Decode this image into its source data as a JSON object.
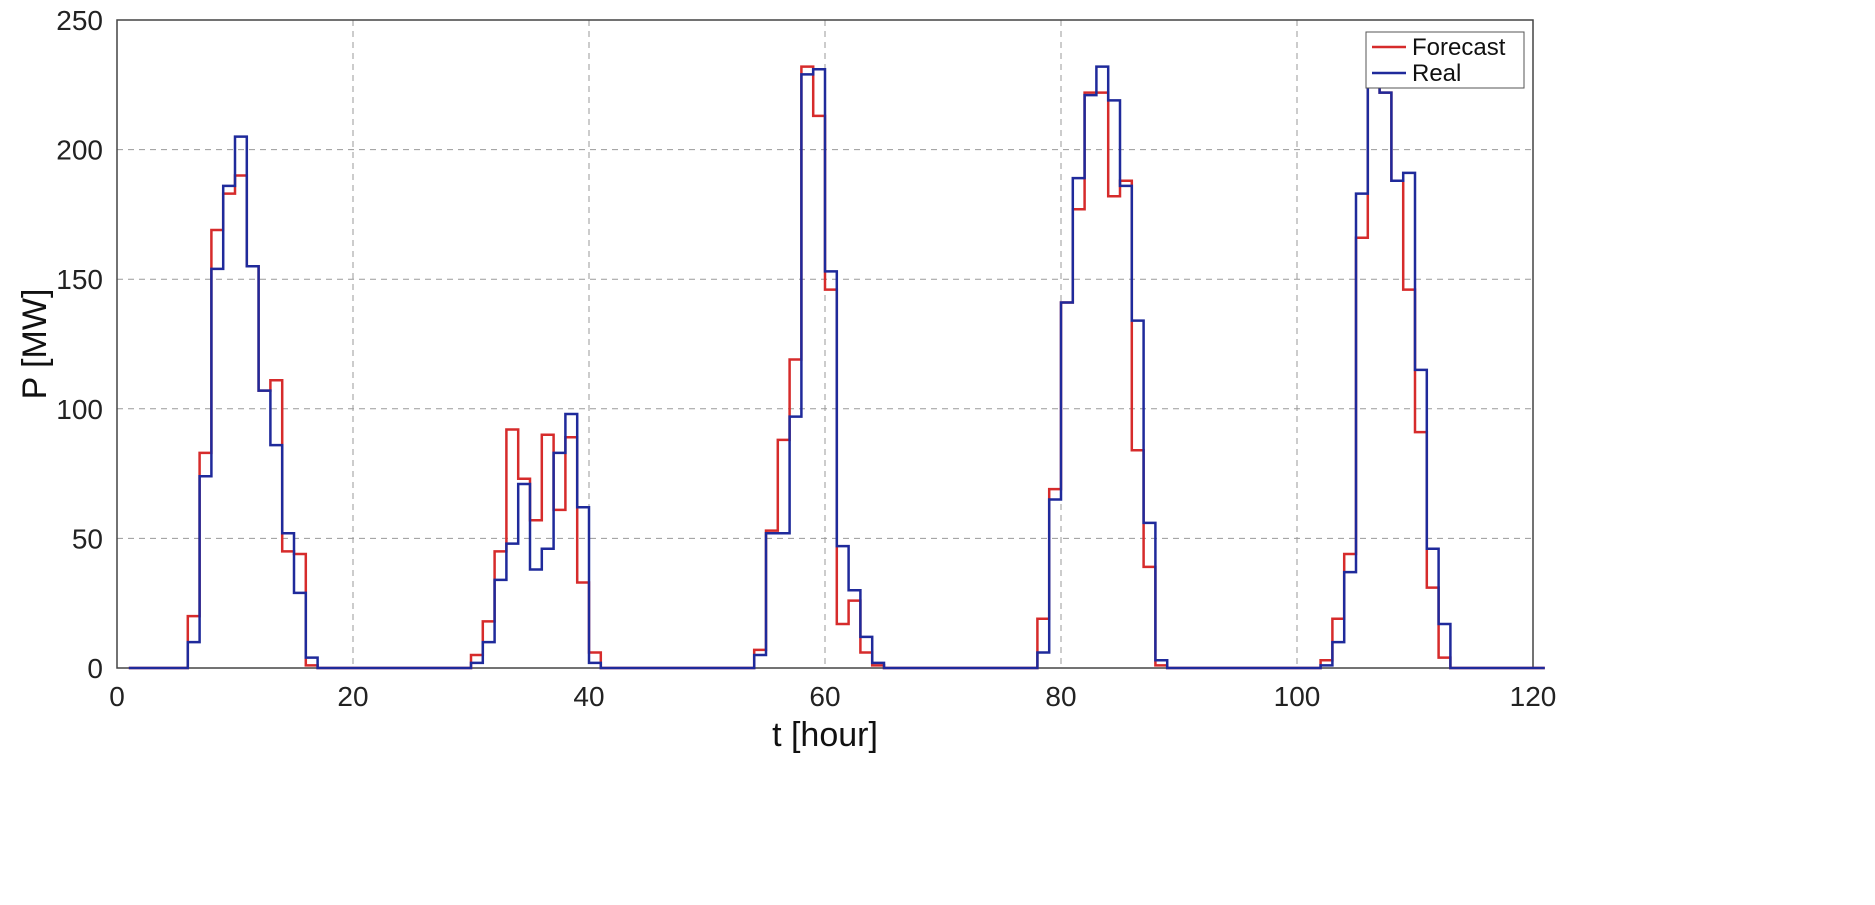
{
  "chart_data": {
    "type": "line",
    "step": true,
    "xlabel": "t [hour]",
    "ylabel": "P [MW]",
    "xlim": [
      0,
      120
    ],
    "ylim": [
      0,
      250
    ],
    "xticks": [
      0,
      20,
      40,
      60,
      80,
      100,
      120
    ],
    "yticks": [
      0,
      50,
      100,
      150,
      200,
      250
    ],
    "x_tick_labels": [
      "0",
      "20",
      "40",
      "60",
      "80",
      "100",
      "120"
    ],
    "y_tick_labels": [
      "0",
      "50",
      "100",
      "150",
      "200",
      "250"
    ],
    "grid": true,
    "legend_position": "top-right",
    "x": [
      1,
      2,
      3,
      4,
      5,
      6,
      7,
      8,
      9,
      10,
      11,
      12,
      13,
      14,
      15,
      16,
      17,
      18,
      19,
      20,
      21,
      22,
      23,
      24,
      25,
      26,
      27,
      28,
      29,
      30,
      31,
      32,
      33,
      34,
      35,
      36,
      37,
      38,
      39,
      40,
      41,
      42,
      43,
      44,
      45,
      46,
      47,
      48,
      49,
      50,
      51,
      52,
      53,
      54,
      55,
      56,
      57,
      58,
      59,
      60,
      61,
      62,
      63,
      64,
      65,
      66,
      67,
      68,
      69,
      70,
      71,
      72,
      73,
      74,
      75,
      76,
      77,
      78,
      79,
      80,
      81,
      82,
      83,
      84,
      85,
      86,
      87,
      88,
      89,
      90,
      91,
      92,
      93,
      94,
      95,
      96,
      97,
      98,
      99,
      100,
      101,
      102,
      103,
      104,
      105,
      106,
      107,
      108,
      109,
      110,
      111,
      112,
      113,
      114,
      115,
      116,
      117,
      118,
      119,
      120
    ],
    "series": [
      {
        "name": "Forecast",
        "color": "#d62b2b",
        "values": [
          0,
          0,
          0,
          0,
          0,
          20,
          83,
          169,
          183,
          190,
          155,
          107,
          111,
          45,
          44,
          1,
          0,
          0,
          0,
          0,
          0,
          0,
          0,
          0,
          0,
          0,
          0,
          0,
          0,
          5,
          18,
          45,
          92,
          73,
          57,
          90,
          61,
          89,
          33,
          6,
          0,
          0,
          0,
          0,
          0,
          0,
          0,
          0,
          0,
          0,
          0,
          0,
          0,
          7,
          53,
          88,
          119,
          232,
          213,
          146,
          17,
          26,
          6,
          1,
          0,
          0,
          0,
          0,
          0,
          0,
          0,
          0,
          0,
          0,
          0,
          0,
          0,
          19,
          69,
          141,
          177,
          222,
          222,
          182,
          188,
          84,
          39,
          1,
          0,
          0,
          0,
          0,
          0,
          0,
          0,
          0,
          0,
          0,
          0,
          0,
          0,
          3,
          19,
          44,
          166,
          232,
          222,
          188,
          146,
          91,
          31,
          4,
          0,
          0,
          0,
          0,
          0,
          0,
          0,
          0
        ]
      },
      {
        "name": "Real",
        "color": "#1f2a9b",
        "values": [
          0,
          0,
          0,
          0,
          0,
          10,
          74,
          154,
          186,
          205,
          155,
          107,
          86,
          52,
          29,
          4,
          0,
          0,
          0,
          0,
          0,
          0,
          0,
          0,
          0,
          0,
          0,
          0,
          0,
          2,
          10,
          34,
          48,
          71,
          38,
          46,
          83,
          98,
          62,
          2,
          0,
          0,
          0,
          0,
          0,
          0,
          0,
          0,
          0,
          0,
          0,
          0,
          0,
          5,
          52,
          52,
          97,
          229,
          231,
          153,
          47,
          30,
          12,
          2,
          0,
          0,
          0,
          0,
          0,
          0,
          0,
          0,
          0,
          0,
          0,
          0,
          0,
          6,
          65,
          141,
          189,
          221,
          232,
          219,
          186,
          134,
          56,
          3,
          0,
          0,
          0,
          0,
          0,
          0,
          0,
          0,
          0,
          0,
          0,
          0,
          0,
          1,
          10,
          37,
          183,
          238,
          222,
          188,
          191,
          115,
          46,
          17,
          0,
          0,
          0,
          0,
          0,
          0,
          0,
          0
        ]
      }
    ]
  }
}
